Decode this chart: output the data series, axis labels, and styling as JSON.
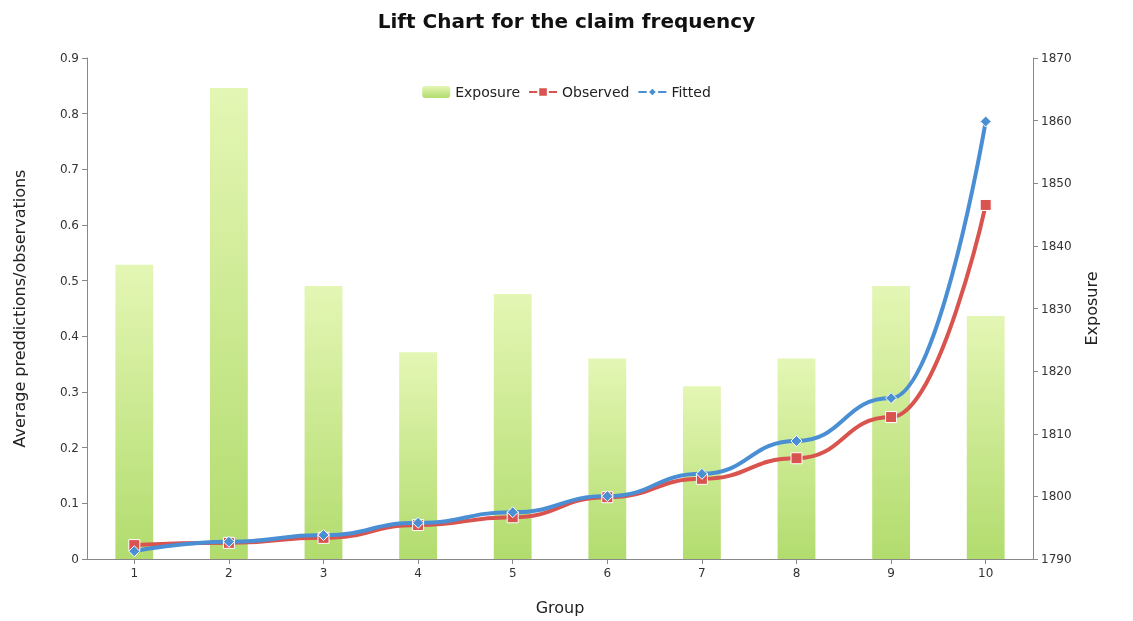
{
  "chart_data": {
    "type": "bar",
    "title": "Lift Chart for the claim frequency",
    "xlabel": "Group",
    "ylabel": "Average preddictions/observations",
    "y2label": "Exposure",
    "categories": [
      "1",
      "2",
      "3",
      "4",
      "5",
      "6",
      "7",
      "8",
      "9",
      "10"
    ],
    "series": [
      {
        "name": "Exposure",
        "axis": "y2",
        "color": "#b2dc6e",
        "values": [
          1837,
          1865.2,
          1833.6,
          1823,
          1832.3,
          1822,
          1817.6,
          1822,
          1833.6,
          1828.8
        ]
      },
      {
        "name": "Observed",
        "type": "line",
        "marker": "square",
        "color": "#d9534f",
        "values": [
          0.025,
          0.029,
          0.038,
          0.061,
          0.075,
          0.111,
          0.144,
          0.181,
          0.255,
          0.636
        ]
      },
      {
        "name": "Fitted",
        "type": "line",
        "marker": "diamond",
        "color": "#4a8fd4",
        "values": [
          0.014,
          0.031,
          0.043,
          0.065,
          0.084,
          0.113,
          0.153,
          0.212,
          0.289,
          0.786
        ]
      }
    ],
    "ylim": [
      0,
      0.9
    ],
    "yticks": [
      0,
      0.1,
      0.2,
      0.3,
      0.4,
      0.5,
      0.6,
      0.7,
      0.8,
      0.9
    ],
    "y2lim": [
      1790,
      1870
    ],
    "y2ticks": [
      1790,
      1800,
      1810,
      1820,
      1830,
      1840,
      1850,
      1860,
      1870
    ],
    "grid": false,
    "legend": "top"
  }
}
